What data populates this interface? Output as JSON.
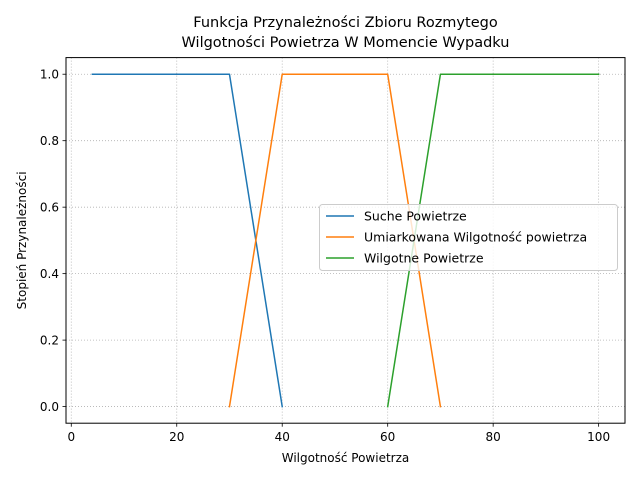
{
  "chart_data": {
    "type": "line",
    "title_line1": "Funkcja Przynależności Zbioru Rozmytego",
    "title_line2": "Wilgotności Powietrza W Momencie Wypadku",
    "xlabel": "Wilgotność Powietrza",
    "ylabel": "Stopień Przynależności",
    "xlim": [
      -1,
      105
    ],
    "ylim": [
      -0.05,
      1.05
    ],
    "xticks": [
      0,
      20,
      40,
      60,
      80,
      100
    ],
    "yticks": [
      0.0,
      0.2,
      0.4,
      0.6,
      0.8,
      1.0
    ],
    "xtick_labels": [
      "0",
      "20",
      "40",
      "60",
      "80",
      "100"
    ],
    "ytick_labels": [
      "0.0",
      "0.2",
      "0.4",
      "0.6",
      "0.8",
      "1.0"
    ],
    "grid": true,
    "legend_position": "center-right",
    "series": [
      {
        "name": "Suche Powietrze",
        "color": "#1f77b4",
        "x": [
          4,
          30,
          40
        ],
        "y": [
          1.0,
          1.0,
          0.0
        ]
      },
      {
        "name": "Umiarkowana Wilgotność powietrza",
        "color": "#ff7f0e",
        "x": [
          30,
          40,
          60,
          70
        ],
        "y": [
          0.0,
          1.0,
          1.0,
          0.0
        ]
      },
      {
        "name": "Wilgotne Powietrze",
        "color": "#2ca02c",
        "x": [
          60,
          70,
          100
        ],
        "y": [
          0.0,
          1.0,
          1.0
        ]
      }
    ]
  }
}
